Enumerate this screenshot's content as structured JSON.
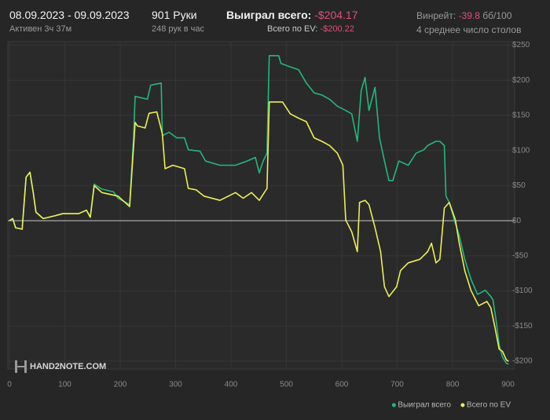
{
  "header": {
    "date_range": "08.09.2023 - 09.09.2023",
    "active": "Активен 3ч 37м",
    "hands": "901 Руки",
    "hands_per_hour": "248 рук в час",
    "won_label": "Выиграл всего:",
    "won_value": "-$204.17",
    "ev_label": "Всего по EV:",
    "ev_value": "-$200.22",
    "winrate_label": "Винрейт:",
    "winrate_value": -39.8,
    "winrate_unit": "бб/100",
    "avg_tables": "4 среднее число столов"
  },
  "watermark": "HAND2NOTE.COM",
  "chart_data": {
    "type": "line",
    "xlim": [
      0,
      912
    ],
    "ylim": [
      -210,
      255
    ],
    "xticks": [
      0,
      100,
      200,
      300,
      400,
      500,
      600,
      700,
      800,
      900
    ],
    "yticks": [
      {
        "value": 250,
        "label": "$250"
      },
      {
        "value": 200,
        "label": "$200"
      },
      {
        "value": 150,
        "label": "$150"
      },
      {
        "value": 100,
        "label": "$100"
      },
      {
        "value": 50,
        "label": "$50"
      },
      {
        "value": 0,
        "label": "$0"
      },
      {
        "value": -50,
        "label": "-$50"
      },
      {
        "value": -100,
        "label": "-$100"
      },
      {
        "value": -150,
        "label": "-$150"
      },
      {
        "value": -200,
        "label": "-$200"
      }
    ],
    "grid": true,
    "legend": "bottom-right",
    "series": [
      {
        "name": "Выиграл всего",
        "color": "#22b87e",
        "x": [
          0,
          6,
          11,
          23,
          30,
          37,
          43,
          48,
          61,
          82,
          96,
          125,
          139,
          146,
          153,
          167,
          188,
          196,
          217,
          224,
          227,
          249,
          255,
          274,
          276,
          288,
          302,
          316,
          323,
          344,
          354,
          380,
          408,
          429,
          444,
          451,
          458,
          465,
          469,
          486,
          490,
          507,
          522,
          536,
          550,
          564,
          578,
          592,
          607,
          618,
          628,
          635,
          642,
          649,
          660,
          668,
          677,
          685,
          692,
          703,
          720,
          734,
          748,
          755,
          770,
          777,
          785,
          788,
          794,
          805,
          812,
          822,
          833,
          845,
          859,
          869,
          873,
          879,
          884,
          890,
          897,
          901
        ],
        "values": [
          0,
          3,
          -10,
          -12,
          62,
          69,
          40,
          12,
          3,
          7,
          10,
          10,
          15,
          5,
          52,
          45,
          41,
          32,
          23,
          117,
          177,
          173,
          193,
          196,
          121,
          126,
          118,
          118,
          101,
          99,
          85,
          79,
          79,
          85,
          90,
          68,
          85,
          96,
          235,
          235,
          224,
          219,
          215,
          196,
          182,
          179,
          173,
          163,
          157,
          152,
          113,
          185,
          204,
          157,
          190,
          118,
          85,
          57,
          57,
          85,
          79,
          96,
          101,
          107,
          113,
          113,
          107,
          35,
          26,
          -4,
          -21,
          -55,
          -83,
          -105,
          -99,
          -108,
          -113,
          -144,
          -177,
          -194,
          -203,
          -204.17
        ]
      },
      {
        "name": "Всего по EV",
        "color": "#eeee55",
        "x": [
          0,
          6,
          11,
          23,
          30,
          37,
          43,
          48,
          61,
          82,
          96,
          125,
          139,
          146,
          153,
          167,
          196,
          217,
          227,
          231,
          245,
          252,
          266,
          276,
          281,
          295,
          316,
          323,
          337,
          351,
          380,
          408,
          422,
          437,
          451,
          465,
          469,
          493,
          507,
          522,
          536,
          550,
          564,
          578,
          592,
          602,
          607,
          618,
          628,
          632,
          642,
          649,
          660,
          670,
          677,
          685,
          699,
          706,
          720,
          741,
          755,
          762,
          770,
          777,
          785,
          794,
          805,
          812,
          822,
          833,
          847,
          862,
          869,
          876,
          884,
          890,
          897,
          901
        ],
        "values": [
          0,
          3,
          -10,
          -12,
          62,
          69,
          40,
          12,
          3,
          7,
          10,
          10,
          15,
          5,
          50,
          40,
          35,
          20,
          140,
          135,
          132,
          153,
          155,
          124,
          74,
          79,
          74,
          46,
          44,
          35,
          29,
          40,
          32,
          40,
          29,
          46,
          169,
          169,
          152,
          146,
          141,
          118,
          113,
          107,
          96,
          79,
          1,
          -16,
          -44,
          26,
          29,
          23,
          -10,
          -44,
          -94,
          -108,
          -94,
          -71,
          -60,
          -55,
          -44,
          -32,
          -60,
          -55,
          18,
          26,
          1,
          -32,
          -71,
          -99,
          -121,
          -115,
          -124,
          -150,
          -183,
          -186,
          -198,
          -200.22
        ]
      }
    ]
  }
}
